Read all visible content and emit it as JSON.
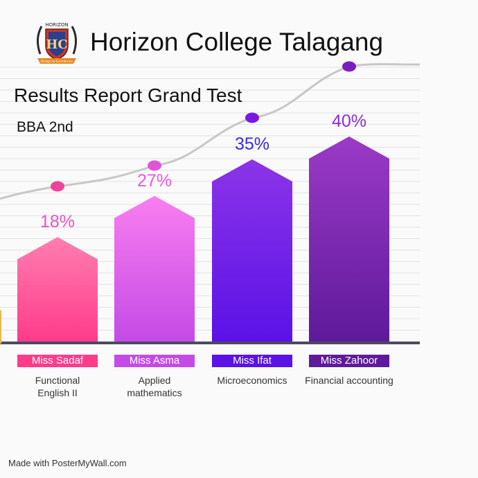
{
  "header": {
    "title": "Horizon College Talagang",
    "logo_text": "HORIZON",
    "logo_initials": "HC",
    "logo_motto": "Bridge to Excellence"
  },
  "report": {
    "subtitle": "Results Report Grand Test",
    "program": "BBA 2nd"
  },
  "chart_data": {
    "type": "bar",
    "title": "Results Report Grand Test",
    "categories": [
      "Functional English II",
      "Applied mathematics",
      "Microeconomics",
      "Financial accounting"
    ],
    "values": [
      18,
      27,
      35,
      40
    ],
    "value_labels": [
      "18%",
      "27%",
      "35%",
      "40%"
    ],
    "teachers": [
      "Miss Sadaf",
      "Miss Asma",
      "Miss Ifat",
      "Miss Zahoor"
    ],
    "subject_lines": [
      [
        "Functional",
        "English II"
      ],
      [
        "Applied",
        "mathematics"
      ],
      [
        "Microeconomics"
      ],
      [
        "Financial accounting"
      ]
    ],
    "colors": {
      "bar_top": [
        "#ff7eb0",
        "#f97ef0",
        "#8b34e8",
        "#9b3ac7"
      ],
      "bar_bottom": [
        "#ff3b8a",
        "#c44be6",
        "#5b12e6",
        "#5e1a9a"
      ],
      "label": [
        "#f04fbf",
        "#e85ad8",
        "#3a2be0",
        "#8a2de0"
      ],
      "marker": [
        "#f0429a",
        "#e055d8",
        "#7a18e0",
        "#7a1cc2"
      ]
    },
    "grid": true,
    "trend_line": true
  },
  "footer": {
    "watermark": "Made with PosterMyWall.com"
  }
}
